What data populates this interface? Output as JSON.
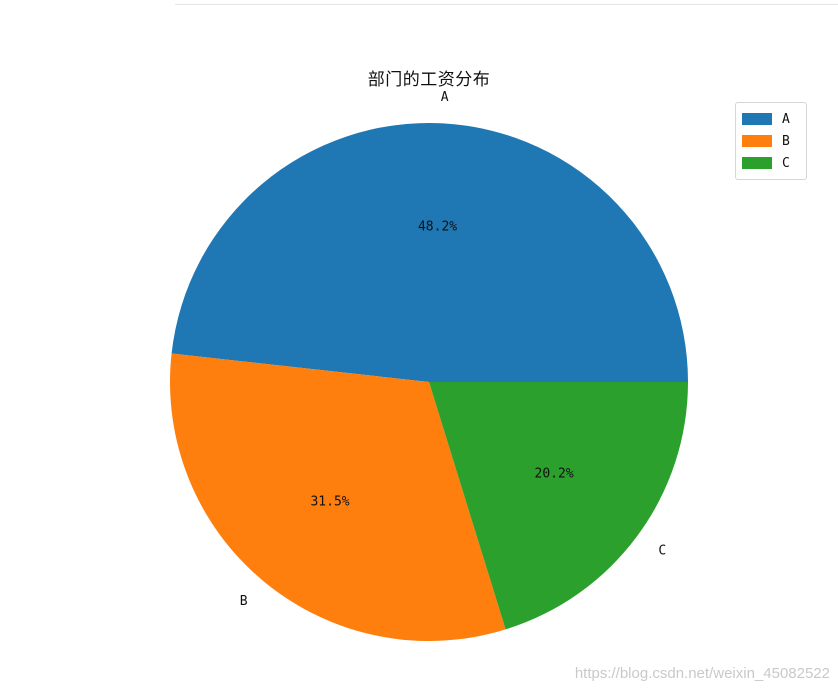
{
  "chart_data": {
    "type": "pie",
    "title": "部门的工资分布",
    "categories": [
      "A",
      "B",
      "C"
    ],
    "values": [
      48.2,
      31.5,
      20.2
    ],
    "percent_labels": [
      "48.2%",
      "31.5%",
      "20.2%"
    ],
    "colors": [
      "#1f77b4",
      "#ff7f0e",
      "#2ca02c"
    ],
    "start": "counterclockwise from 0 degrees (3 o'clock)",
    "legend": {
      "placement": "top-right",
      "entries": [
        "A",
        "B",
        "C"
      ]
    }
  },
  "watermark": "https://blog.csdn.net/weixin_45082522"
}
